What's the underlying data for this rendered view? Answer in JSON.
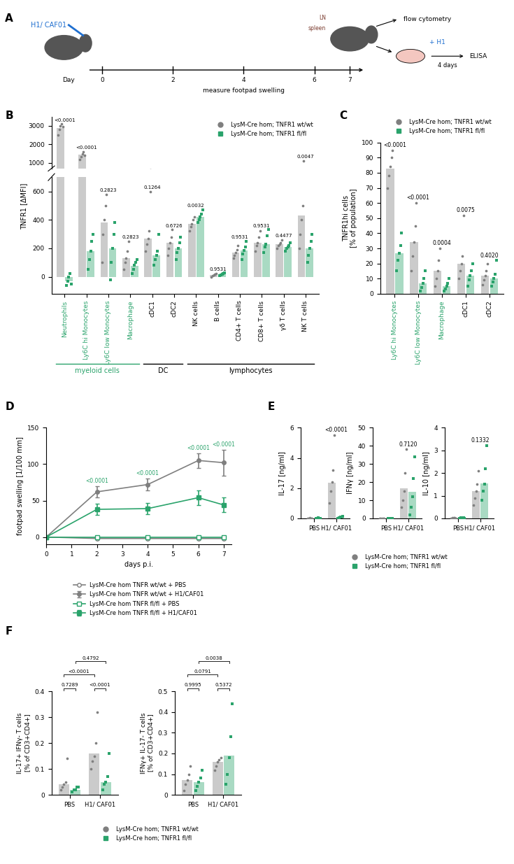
{
  "diagram": {
    "panel": "A",
    "injection": "H1/ CAF01",
    "day_label": "Day",
    "days": [
      0,
      2,
      4,
      6,
      7
    ],
    "measure": "measure footpad swelling",
    "organs": [
      "LN",
      "spleen"
    ],
    "readout1": "flow cytometry",
    "restimulation": "+ H1",
    "duration": "4 days",
    "readout2": "ELISA"
  },
  "chart_data": [
    {
      "panel": "B",
      "type": "bar",
      "y_label": "TNFR1 [ΔMFI]",
      "legend": "upper right",
      "segments": [
        {
          "ylim": [
            700,
            3500
          ],
          "yticks": [
            1000,
            2000,
            3000
          ]
        },
        {
          "ylim": [
            -120,
            700
          ],
          "yticks": [
            0,
            200,
            400,
            600
          ]
        }
      ],
      "categories": [
        "Neutrophils",
        "Ly6C hi Monocytes",
        "Ly6C low Monocytes",
        "Macrophage",
        "cDC1",
        "cDC2",
        "NK cells",
        "B cells",
        "CD4+ T cells",
        "CD8+ T cells",
        "γδ T cells",
        "NK T cells"
      ],
      "groups": [
        {
          "label": "myeloid cells",
          "color": "#2aa36b",
          "members": [
            "Neutrophils",
            "Ly6C hi Monocytes",
            "Ly6C low Monocytes",
            "Macrophage"
          ]
        },
        {
          "label": "DC",
          "color": "#000000",
          "members": [
            "cDC1",
            "cDC2"
          ]
        },
        {
          "label": "lymphocytes",
          "color": "#000000",
          "members": [
            "NK cells",
            "B cells",
            "CD4+ T cells",
            "CD8+ T cells",
            "γδ T cells",
            "NK T cells"
          ]
        }
      ],
      "p_values": [
        "<0.0001",
        "<0.0001",
        "0.2823",
        "0.2823",
        "0.1264",
        "0.6726",
        "0.0032",
        "0.9531",
        "0.9531",
        "0.9531",
        "0.4477",
        "0.0047"
      ],
      "series": [
        {
          "name": "LysM-Cre hom; TNFR1 wt/wt",
          "color": "#7f7f7f",
          "marker": "circle",
          "values": [
            2900,
            1450,
            380,
            130,
            270,
            240,
            370,
            10,
            170,
            240,
            230,
            430
          ],
          "points": [
            [
              2500,
              2800,
              3000,
              3100,
              2950
            ],
            [
              1200,
              1350,
              1500,
              1600,
              1400
            ],
            [
              100,
              300,
              400,
              500,
              580
            ],
            [
              50,
              100,
              130,
              180,
              250
            ],
            [
              180,
              230,
              270,
              320,
              600
            ],
            [
              150,
              200,
              240,
              280,
              330
            ],
            [
              320,
              350,
              370,
              400,
              420
            ],
            [
              0,
              5,
              10,
              15,
              20
            ],
            [
              130,
              150,
              170,
              190,
              220
            ],
            [
              180,
              220,
              240,
              280,
              320
            ],
            [
              200,
              220,
              230,
              240,
              260
            ],
            [
              200,
              300,
              400,
              500,
              1100
            ]
          ]
        },
        {
          "name": "LysM-Cre hom; TNFR1 fl/fl",
          "color": "#2aa36b",
          "marker": "square",
          "values": [
            -30,
            180,
            200,
            75,
            150,
            200,
            420,
            15,
            185,
            230,
            210,
            200
          ],
          "points": [
            [
              -60,
              -30,
              0,
              20,
              -50
            ],
            [
              50,
              120,
              180,
              250,
              300
            ],
            [
              -20,
              100,
              200,
              300,
              380
            ],
            [
              20,
              50,
              80,
              100,
              120
            ],
            [
              80,
              120,
              150,
              180,
              300
            ],
            [
              120,
              170,
              200,
              240,
              280
            ],
            [
              380,
              400,
              420,
              440,
              470
            ],
            [
              5,
              10,
              15,
              20,
              25
            ],
            [
              120,
              160,
              185,
              210,
              250
            ],
            [
              170,
              210,
              230,
              290,
              330
            ],
            [
              180,
              200,
              210,
              220,
              240
            ],
            [
              100,
              150,
              200,
              250,
              300
            ]
          ]
        }
      ]
    },
    {
      "panel": "C",
      "type": "bar",
      "y_label": "TNFR1hi cells\n[% of population]",
      "legend": "lower center",
      "ylim": [
        0,
        100
      ],
      "yticks": [
        0,
        10,
        20,
        30,
        40,
        50,
        60,
        70,
        80,
        90,
        100
      ],
      "categories": [
        "Ly6C hi Monocytes",
        "Ly6C low Monocytes",
        "Macrophage",
        "cDC1",
        "cDC2"
      ],
      "p_values": [
        "<0.0001",
        "<0.0001",
        "0.0004",
        "0.0075",
        "0.4020"
      ],
      "series": [
        {
          "name": "LysM-Cre hom; TNFR1 wt/wt",
          "color": "#7f7f7f",
          "marker": "circle",
          "values": [
            83,
            34,
            15,
            20,
            12
          ],
          "points": [
            [
              70,
              78,
              84,
              90,
              95
            ],
            [
              15,
              25,
              34,
              45,
              60
            ],
            [
              5,
              10,
              15,
              22,
              30
            ],
            [
              10,
              15,
              20,
              25,
              52
            ],
            [
              6,
              9,
              12,
              15,
              20
            ]
          ]
        },
        {
          "name": "LysM-Cre hom; TNFR1 fl/fl",
          "color": "#2aa36b",
          "marker": "square",
          "values": [
            27,
            7,
            5,
            12,
            10
          ],
          "points": [
            [
              15,
              22,
              27,
              32,
              40
            ],
            [
              2,
              4,
              7,
              10,
              15
            ],
            [
              2,
              3,
              5,
              7,
              10
            ],
            [
              5,
              9,
              12,
              15,
              20
            ],
            [
              5,
              8,
              10,
              13,
              22
            ]
          ]
        }
      ]
    },
    {
      "panel": "D",
      "type": "line",
      "x_label": "days p.i.",
      "y_label": "footpad swelling [1/100 mm]",
      "legend": "upper center",
      "x": [
        0,
        2,
        4,
        6,
        7
      ],
      "xlim": [
        0,
        7.3
      ],
      "xticks": [
        0,
        1,
        2,
        3,
        4,
        5,
        6,
        7
      ],
      "ylim": [
        -10,
        150
      ],
      "yticks": [
        0,
        50,
        100,
        150
      ],
      "p_values": [
        null,
        "<0.0001",
        "<0.0001",
        "<0.0001",
        "<0.0001"
      ],
      "series": [
        {
          "name": "LysM-Cre hom TNFR wt/wt + PBS",
          "color": "#7f7f7f",
          "marker": "open_circle",
          "values": [
            0,
            -2,
            -2,
            -2,
            -2
          ]
        },
        {
          "name": "LysM-Cre hom TNFR wt/wt + H1/CAF01",
          "color": "#7f7f7f",
          "marker": "circle",
          "values": [
            0,
            62,
            72,
            105,
            102
          ],
          "errors": [
            0,
            8,
            8,
            10,
            18
          ]
        },
        {
          "name": "LysM-Cre hom TNFR fl/fl + PBS",
          "color": "#2aa36b",
          "marker": "open_square",
          "values": [
            0,
            0,
            0,
            0,
            0
          ]
        },
        {
          "name": "LysM-Cre hom TNFR fl/fl + H1/CAF01",
          "color": "#2aa36b",
          "marker": "square",
          "values": [
            0,
            38,
            39,
            54,
            44
          ],
          "errors": [
            0,
            8,
            8,
            10,
            10
          ]
        }
      ]
    },
    {
      "panel": "E",
      "type": "bar",
      "y_label": "IL-17 [ng/ml]",
      "legend": "upper center",
      "ylim": [
        0,
        6
      ],
      "yticks": [
        0,
        2,
        4,
        6
      ],
      "categories": [
        "PBS",
        "H1/ CAF01"
      ],
      "p_values": [
        null,
        "<0.0001"
      ],
      "series": [
        {
          "name": "LysM-Cre hom; TNFR1 wt/wt",
          "color": "#7f7f7f",
          "marker": "circle",
          "values": [
            0.02,
            2.35
          ],
          "points": [
            [
              0.01,
              0.02,
              0.03,
              0.02,
              0.01
            ],
            [
              1.0,
              1.8,
              2.4,
              3.2,
              5.5
            ]
          ]
        },
        {
          "name": "LysM-Cre hom; TNFR1 fl/fl",
          "color": "#2aa36b",
          "marker": "square",
          "values": [
            0.02,
            0.08
          ],
          "points": [
            [
              0.01,
              0.02,
              0.03,
              0.02,
              0.01
            ],
            [
              0.02,
              0.05,
              0.08,
              0.1,
              0.15
            ]
          ]
        }
      ]
    },
    {
      "type": "bar",
      "y_label": "IFNγ [ng/ml]",
      "ylim": [
        0,
        50
      ],
      "yticks": [
        0,
        10,
        20,
        30,
        40,
        50
      ],
      "categories": [
        "PBS",
        "H1/ CAF01"
      ],
      "p_values": [
        null,
        "0.7120"
      ],
      "series": [
        {
          "name": "LysM-Cre hom; TNFR1 wt/wt",
          "color": "#7f7f7f",
          "marker": "circle",
          "values": [
            0.1,
            16.5
          ],
          "points": [
            [
              0.05,
              0.1,
              0.15,
              0.1,
              0.1
            ],
            [
              6,
              10,
              15,
              25,
              38
            ]
          ]
        },
        {
          "name": "LysM-Cre hom; TNFR1 fl/fl",
          "color": "#2aa36b",
          "marker": "square",
          "values": [
            0.1,
            14.5
          ],
          "points": [
            [
              0.05,
              0.1,
              0.15,
              0.1,
              0.1
            ],
            [
              2,
              6,
              12,
              22,
              34
            ]
          ]
        }
      ]
    },
    {
      "type": "bar",
      "y_label": "IL-10 [ng/ml]",
      "ylim": [
        0,
        4
      ],
      "yticks": [
        0,
        1,
        2,
        3,
        4
      ],
      "categories": [
        "PBS",
        "H1/ CAF01"
      ],
      "p_values": [
        null,
        "0.1332"
      ],
      "series": [
        {
          "name": "LysM-Cre hom; TNFR1 wt/wt",
          "color": "#7f7f7f",
          "marker": "circle",
          "values": [
            0.02,
            1.2
          ],
          "points": [
            [
              0.01,
              0.02,
              0.03,
              0.02,
              0.01
            ],
            [
              0.6,
              0.9,
              1.2,
              1.5,
              2.1
            ]
          ]
        },
        {
          "name": "LysM-Cre hom; TNFR1 fl/fl",
          "color": "#2aa36b",
          "marker": "square",
          "values": [
            0.02,
            1.55
          ],
          "points": [
            [
              0.01,
              0.02,
              0.03,
              0.02,
              0.01
            ],
            [
              0.8,
              1.2,
              1.5,
              2.2,
              3.2
            ]
          ]
        }
      ]
    },
    {
      "panel": "F",
      "type": "bar",
      "y_label": "IL-17+ IFNγ- T cells\n[% of CD3+CD4+]",
      "legend": "upper center",
      "ylim": [
        0,
        0.4
      ],
      "yticks": [
        0,
        0.1,
        0.2,
        0.3,
        0.4
      ],
      "categories": [
        "PBS",
        "H1/ CAF01"
      ],
      "p_within": [
        "0.7289",
        "<0.0001"
      ],
      "p_across": [
        "<0.0001",
        "0.4792"
      ],
      "series": [
        {
          "name": "LysM-Cre hom; TNFR1 wt/wt",
          "color": "#7f7f7f",
          "marker": "circle",
          "values": [
            0.04,
            0.16
          ],
          "points": [
            [
              0.02,
              0.03,
              0.04,
              0.05,
              0.14
            ],
            [
              0.1,
              0.13,
              0.15,
              0.2,
              0.32
            ]
          ]
        },
        {
          "name": "LysM-Cre hom; TNFR1 fl/fl",
          "color": "#2aa36b",
          "marker": "square",
          "values": [
            0.02,
            0.05
          ],
          "points": [
            [
              0.01,
              0.02,
              0.02,
              0.03,
              0.03
            ],
            [
              0.02,
              0.04,
              0.05,
              0.07,
              0.16
            ]
          ]
        }
      ]
    },
    {
      "type": "bar",
      "y_label": "IFNγ+ IL-17- T cells\n[% of CD3+CD4+]",
      "ylim": [
        0,
        0.5
      ],
      "yticks": [
        0,
        0.1,
        0.2,
        0.3,
        0.4,
        0.5
      ],
      "categories": [
        "PBS",
        "H1/ CAF01"
      ],
      "p_within": [
        "0.9995",
        "0.5372"
      ],
      "p_across": [
        "0.0791",
        "0.0038"
      ],
      "series": [
        {
          "name": "LysM-Cre hom; TNFR1 wt/wt",
          "color": "#7f7f7f",
          "marker": "circle",
          "values": [
            0.07,
            0.16
          ],
          "points": [
            [
              0.02,
              0.05,
              0.07,
              0.1,
              0.14
            ],
            [
              0.12,
              0.14,
              0.16,
              0.17,
              0.18
            ]
          ]
        },
        {
          "name": "LysM-Cre hom; TNFR1 fl/fl",
          "color": "#2aa36b",
          "marker": "square",
          "values": [
            0.06,
            0.19
          ],
          "points": [
            [
              0.02,
              0.04,
              0.06,
              0.08,
              0.12
            ],
            [
              0.05,
              0.1,
              0.18,
              0.28,
              0.44
            ]
          ]
        }
      ]
    }
  ]
}
